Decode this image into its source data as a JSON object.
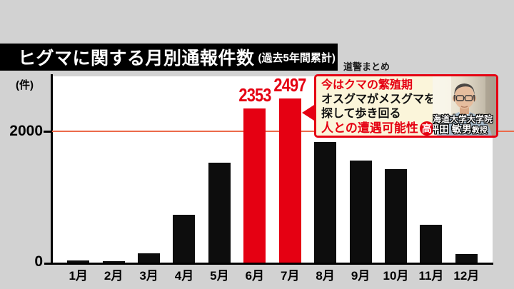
{
  "header": {
    "source": "道警まとめ"
  },
  "chart_data": {
    "type": "bar",
    "title": "ヒグマに関する月別通報件数",
    "subtitle": "(過去5年間累計)",
    "ylabel": "(件)",
    "ylim": [
      0,
      2600
    ],
    "yticks": [
      {
        "label": "2000",
        "value": 2000
      },
      {
        "label": "0",
        "value": 0
      }
    ],
    "reference_line": {
      "value": 2000,
      "color": "#ec6a4a"
    },
    "grid": "off",
    "categories": [
      "1月",
      "2月",
      "3月",
      "4月",
      "5月",
      "6月",
      "7月",
      "8月",
      "9月",
      "10月",
      "11月",
      "12月"
    ],
    "values": [
      30,
      15,
      140,
      730,
      1520,
      2353,
      2497,
      1840,
      1550,
      1420,
      575,
      125
    ],
    "highlighted_categories": [
      "6月",
      "7月"
    ],
    "data_labels": [
      {
        "category": "6月",
        "text": "2353"
      },
      {
        "category": "7月",
        "text": "2497"
      }
    ],
    "bar_color": "#0d0d0d",
    "highlight_color": "#e50012"
  },
  "callout": {
    "line1": "今はクマの繁殖期",
    "line2": "オスグマがメスグマを",
    "line3": "探して歩き回る",
    "line4": "人との遭遇可能性",
    "badge": "高",
    "person_affiliation": "北海道大学大学院",
    "person_name": "坪田 敏男",
    "person_title": "教授"
  }
}
